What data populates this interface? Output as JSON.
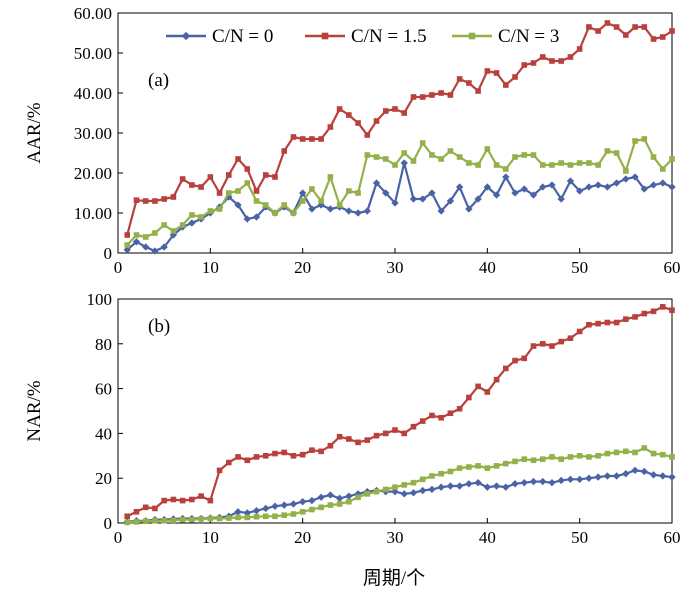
{
  "chart_data": [
    {
      "type": "line",
      "panel_label": "(a)",
      "xlabel": "",
      "ylabel": "AAR/%",
      "xlim": [
        0,
        60
      ],
      "ylim": [
        0,
        60
      ],
      "x_ticks": [
        "0",
        "10",
        "20",
        "30",
        "40",
        "50",
        "60"
      ],
      "y_ticks": [
        "0",
        "10.00",
        "20.00",
        "30.00",
        "40.00",
        "50.00",
        "60.00"
      ],
      "grid": false,
      "legend": "top",
      "x": [
        1,
        2,
        3,
        4,
        5,
        6,
        7,
        8,
        9,
        10,
        11,
        12,
        13,
        14,
        15,
        16,
        17,
        18,
        19,
        20,
        21,
        22,
        23,
        24,
        25,
        26,
        27,
        28,
        29,
        30,
        31,
        32,
        33,
        34,
        35,
        36,
        37,
        38,
        39,
        40,
        41,
        42,
        43,
        44,
        45,
        46,
        47,
        48,
        49,
        50,
        51,
        52,
        53,
        54,
        55,
        56,
        57,
        58,
        59,
        60
      ],
      "series": [
        {
          "name": "C/N = 0",
          "color": "#4a62a6",
          "marker": "diamond",
          "values": [
            0.8,
            2.8,
            1.5,
            0.5,
            1.5,
            4.5,
            6.5,
            7.5,
            8.5,
            10.0,
            11.5,
            14.0,
            12.0,
            8.5,
            9.0,
            11.5,
            10.0,
            11.5,
            10.0,
            15.0,
            11.0,
            12.0,
            11.0,
            11.5,
            10.5,
            10.0,
            10.5,
            17.5,
            15.0,
            12.5,
            22.5,
            13.5,
            13.5,
            15.0,
            10.5,
            13.0,
            16.5,
            11.0,
            13.5,
            16.5,
            14.5,
            19.0,
            15.0,
            16.0,
            14.5,
            16.5,
            17.0,
            13.5,
            18.0,
            15.5,
            16.5,
            17.0,
            16.5,
            17.5,
            18.5,
            19.0,
            16.0,
            17.0,
            17.5,
            16.5
          ]
        },
        {
          "name": "C/N = 1.5",
          "color": "#b8403d",
          "marker": "square",
          "values": [
            4.5,
            13.2,
            13.0,
            13.0,
            13.5,
            14.0,
            18.5,
            17.0,
            16.5,
            19.0,
            15.0,
            19.5,
            23.5,
            21.0,
            15.5,
            19.5,
            19.0,
            25.5,
            29.0,
            28.5,
            28.5,
            28.5,
            31.5,
            36.0,
            34.5,
            32.5,
            29.5,
            33.0,
            35.5,
            36.0,
            35.0,
            39.0,
            39.0,
            39.5,
            40.0,
            39.5,
            43.5,
            42.5,
            40.5,
            45.5,
            45.0,
            42.0,
            44.0,
            47.0,
            47.5,
            49.0,
            48.0,
            48.0,
            49.0,
            51.0,
            56.5,
            55.5,
            57.5,
            56.5,
            54.5,
            56.5,
            56.5,
            53.5,
            54.0,
            55.5
          ]
        },
        {
          "name": "C/N = 3",
          "color": "#94b048",
          "marker": "square",
          "values": [
            2.0,
            4.5,
            4.0,
            5.0,
            7.0,
            5.5,
            7.0,
            9.5,
            9.0,
            10.5,
            11.0,
            15.0,
            15.5,
            17.5,
            13.0,
            12.0,
            10.0,
            12.0,
            10.0,
            13.0,
            16.0,
            13.0,
            19.0,
            12.0,
            15.5,
            15.0,
            24.5,
            24.0,
            23.5,
            22.0,
            25.0,
            23.0,
            27.5,
            24.5,
            23.5,
            25.5,
            24.0,
            22.5,
            22.0,
            26.0,
            22.0,
            21.0,
            24.0,
            24.5,
            24.5,
            22.0,
            22.0,
            22.5,
            22.0,
            22.5,
            22.5,
            22.0,
            25.5,
            25.0,
            20.5,
            28.0,
            28.5,
            24.0,
            21.0,
            23.5
          ]
        }
      ]
    },
    {
      "type": "line",
      "panel_label": "(b)",
      "xlabel": "周期/个",
      "ylabel": "NAR/%",
      "xlim": [
        0,
        60
      ],
      "ylim": [
        0,
        100
      ],
      "x_ticks": [
        "0",
        "10",
        "20",
        "30",
        "40",
        "50",
        "60"
      ],
      "y_ticks": [
        "0",
        "20",
        "40",
        "60",
        "80",
        "100"
      ],
      "grid": false,
      "legend": "none",
      "x": [
        1,
        2,
        3,
        4,
        5,
        6,
        7,
        8,
        9,
        10,
        11,
        12,
        13,
        14,
        15,
        16,
        17,
        18,
        19,
        20,
        21,
        22,
        23,
        24,
        25,
        26,
        27,
        28,
        29,
        30,
        31,
        32,
        33,
        34,
        35,
        36,
        37,
        38,
        39,
        40,
        41,
        42,
        43,
        44,
        45,
        46,
        47,
        48,
        49,
        50,
        51,
        52,
        53,
        54,
        55,
        56,
        57,
        58,
        59,
        60
      ],
      "series": [
        {
          "name": "C/N = 0",
          "color": "#4a62a6",
          "marker": "diamond",
          "values": [
            0.5,
            1.0,
            1.0,
            1.5,
            1.5,
            1.8,
            2.0,
            2.0,
            2.0,
            2.2,
            2.5,
            3.0,
            5.0,
            4.5,
            5.5,
            6.5,
            7.5,
            8.0,
            8.5,
            9.5,
            10.0,
            11.5,
            12.5,
            11.0,
            12.0,
            13.0,
            14.0,
            14.5,
            14.0,
            14.0,
            13.0,
            13.5,
            14.5,
            15.0,
            16.0,
            16.5,
            16.5,
            17.5,
            18.0,
            16.0,
            16.5,
            16.0,
            17.5,
            18.0,
            18.5,
            18.5,
            18.0,
            19.0,
            19.5,
            19.5,
            20.0,
            20.5,
            21.0,
            21.0,
            22.0,
            23.5,
            23.0,
            21.5,
            21.0,
            20.5
          ]
        },
        {
          "name": "C/N = 1.5",
          "color": "#b8403d",
          "marker": "square",
          "values": [
            3.0,
            5.0,
            7.0,
            6.5,
            10.0,
            10.5,
            10.0,
            10.5,
            12.0,
            10.0,
            23.5,
            27.0,
            29.5,
            28.0,
            29.5,
            30.0,
            31.0,
            31.5,
            30.0,
            30.5,
            32.5,
            32.0,
            34.5,
            38.5,
            37.5,
            36.0,
            37.0,
            39.0,
            40.0,
            41.5,
            40.0,
            43.0,
            45.5,
            48.0,
            47.0,
            49.0,
            51.0,
            56.0,
            61.0,
            58.5,
            64.0,
            69.0,
            72.5,
            73.5,
            79.0,
            80.0,
            79.0,
            81.0,
            82.5,
            85.5,
            88.5,
            89.0,
            89.5,
            89.5,
            91.0,
            92.0,
            93.5,
            94.5,
            96.5,
            95.0
          ]
        },
        {
          "name": "C/N = 3",
          "color": "#94b048",
          "marker": "square",
          "values": [
            0.3,
            0.5,
            0.8,
            1.0,
            1.0,
            1.2,
            1.5,
            1.5,
            1.8,
            2.0,
            2.0,
            2.2,
            2.5,
            2.5,
            2.8,
            3.0,
            3.0,
            3.5,
            4.0,
            5.0,
            6.0,
            7.0,
            8.0,
            8.5,
            9.5,
            11.5,
            13.0,
            14.0,
            15.0,
            16.0,
            17.0,
            18.0,
            19.5,
            21.0,
            22.0,
            23.0,
            24.5,
            25.0,
            25.5,
            24.5,
            25.5,
            26.5,
            27.5,
            28.5,
            28.0,
            28.5,
            29.5,
            28.5,
            29.5,
            30.0,
            29.5,
            30.0,
            31.0,
            31.5,
            32.0,
            31.5,
            33.5,
            31.0,
            30.5,
            29.5
          ]
        }
      ]
    }
  ]
}
